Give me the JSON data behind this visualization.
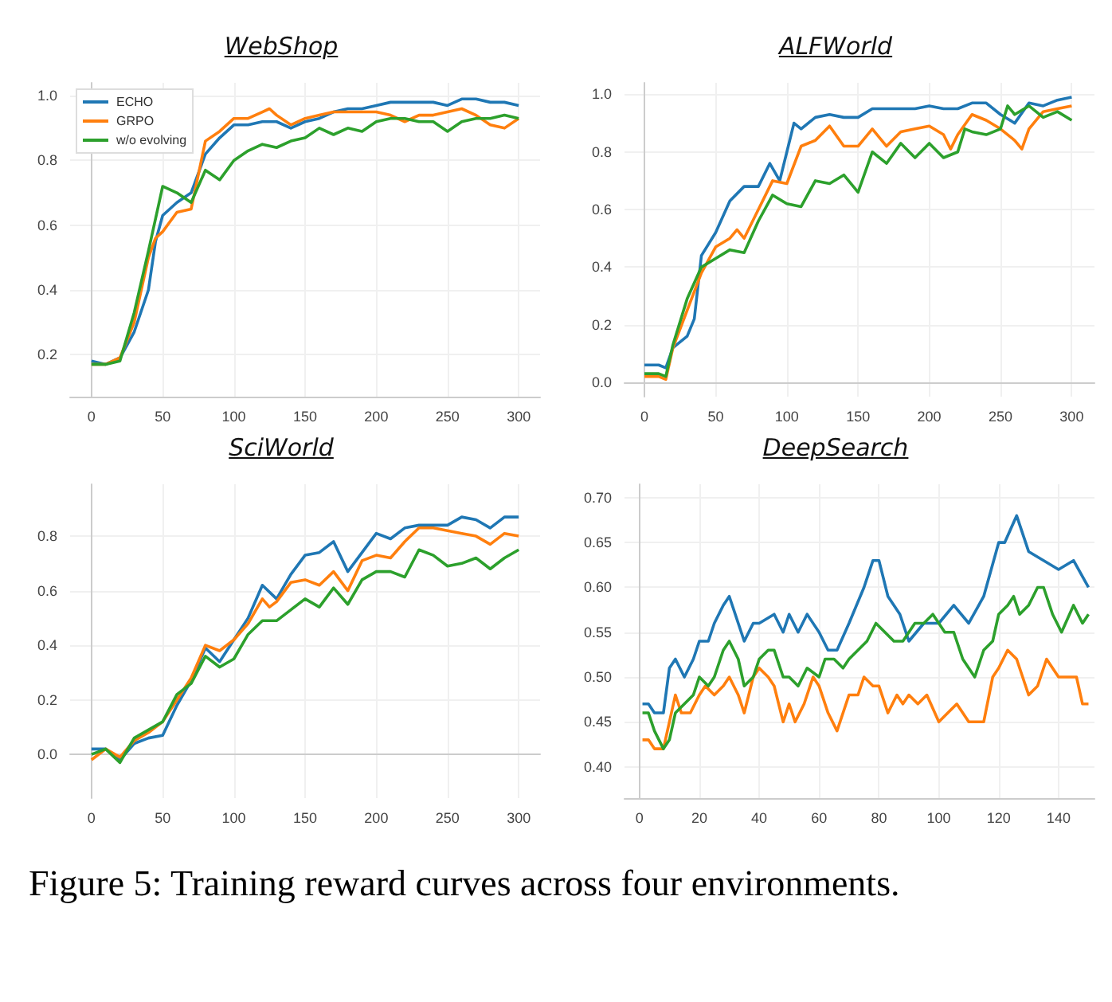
{
  "chart_data": [
    {
      "type": "line",
      "title": "WebShop",
      "legend": "top left",
      "grid": true,
      "xlim": [
        -15,
        315
      ],
      "xticks": [
        0,
        50,
        100,
        150,
        200,
        250,
        300
      ],
      "ylim": [
        0.07,
        1.04
      ],
      "yticks": [
        0.2,
        0.4,
        0.6,
        0.8,
        {
          "value": 1,
          "label": "1.0"
        }
      ],
      "series": [
        {
          "name": "ECHO",
          "color": "#1f77b4",
          "x": [
            0,
            10,
            20,
            30,
            40,
            45,
            50,
            60,
            70,
            80,
            90,
            100,
            110,
            120,
            130,
            140,
            150,
            160,
            170,
            180,
            190,
            200,
            210,
            220,
            230,
            240,
            250,
            260,
            270,
            280,
            290,
            300
          ],
          "values": [
            0.18,
            0.17,
            0.19,
            0.27,
            0.4,
            0.55,
            0.63,
            0.67,
            0.7,
            0.82,
            0.87,
            0.91,
            0.91,
            0.92,
            0.92,
            0.9,
            0.92,
            0.93,
            0.95,
            0.96,
            0.96,
            0.97,
            0.98,
            0.98,
            0.98,
            0.98,
            0.97,
            0.99,
            0.99,
            0.98,
            0.98,
            0.97
          ]
        },
        {
          "name": "GRPO",
          "color": "#ff7f0e",
          "x": [
            0,
            10,
            20,
            30,
            40,
            45,
            50,
            60,
            70,
            80,
            90,
            100,
            110,
            120,
            125,
            130,
            140,
            150,
            160,
            170,
            180,
            190,
            200,
            210,
            220,
            230,
            240,
            250,
            260,
            270,
            280,
            290,
            300
          ],
          "values": [
            0.17,
            0.17,
            0.19,
            0.3,
            0.5,
            0.56,
            0.58,
            0.64,
            0.65,
            0.86,
            0.89,
            0.93,
            0.93,
            0.95,
            0.96,
            0.94,
            0.91,
            0.93,
            0.94,
            0.95,
            0.95,
            0.95,
            0.95,
            0.94,
            0.92,
            0.94,
            0.94,
            0.95,
            0.96,
            0.94,
            0.91,
            0.9,
            0.93
          ]
        },
        {
          "name": "w/o evolving",
          "color": "#2ca02c",
          "x": [
            0,
            10,
            20,
            30,
            40,
            50,
            60,
            70,
            80,
            90,
            100,
            110,
            120,
            130,
            140,
            150,
            160,
            170,
            180,
            190,
            200,
            210,
            220,
            230,
            240,
            250,
            260,
            270,
            280,
            290,
            300
          ],
          "values": [
            0.17,
            0.17,
            0.18,
            0.33,
            0.52,
            0.72,
            0.7,
            0.67,
            0.77,
            0.74,
            0.8,
            0.83,
            0.85,
            0.84,
            0.86,
            0.87,
            0.9,
            0.88,
            0.9,
            0.89,
            0.92,
            0.93,
            0.93,
            0.92,
            0.92,
            0.89,
            0.92,
            0.93,
            0.93,
            0.94,
            0.93
          ]
        }
      ]
    },
    {
      "type": "line",
      "title": "ALFWorld",
      "grid": true,
      "xlim": [
        -14,
        316
      ],
      "xticks": [
        0,
        50,
        100,
        150,
        200,
        250,
        300
      ],
      "ylim": [
        -0.05,
        1.04
      ],
      "yticks": [
        {
          "value": 0,
          "label": "0.0"
        },
        0.2,
        0.4,
        0.6,
        0.8,
        {
          "value": 1,
          "label": "1.0"
        }
      ],
      "series": [
        {
          "color": "#1f77b4",
          "x": [
            0,
            10,
            15,
            20,
            30,
            35,
            40,
            50,
            60,
            70,
            80,
            88,
            95,
            100,
            105,
            110,
            120,
            130,
            140,
            150,
            160,
            170,
            180,
            190,
            200,
            210,
            220,
            230,
            240,
            250,
            260,
            270,
            280,
            290,
            300
          ],
          "values": [
            0.06,
            0.06,
            0.05,
            0.12,
            0.16,
            0.22,
            0.44,
            0.52,
            0.63,
            0.68,
            0.68,
            0.76,
            0.7,
            0.8,
            0.9,
            0.88,
            0.92,
            0.93,
            0.92,
            0.92,
            0.95,
            0.95,
            0.95,
            0.95,
            0.96,
            0.95,
            0.95,
            0.97,
            0.97,
            0.93,
            0.9,
            0.97,
            0.96,
            0.98,
            0.99
          ]
        },
        {
          "color": "#ff7f0e",
          "x": [
            0,
            10,
            15,
            20,
            30,
            40,
            50,
            60,
            65,
            70,
            80,
            90,
            100,
            110,
            120,
            130,
            140,
            150,
            160,
            170,
            180,
            190,
            200,
            210,
            215,
            220,
            230,
            240,
            250,
            260,
            265,
            270,
            280,
            290,
            300
          ],
          "values": [
            0.02,
            0.02,
            0.01,
            0.12,
            0.25,
            0.38,
            0.47,
            0.5,
            0.53,
            0.5,
            0.6,
            0.7,
            0.69,
            0.82,
            0.84,
            0.89,
            0.82,
            0.82,
            0.88,
            0.82,
            0.87,
            0.88,
            0.89,
            0.86,
            0.81,
            0.86,
            0.93,
            0.91,
            0.88,
            0.84,
            0.81,
            0.88,
            0.94,
            0.95,
            0.96
          ]
        },
        {
          "color": "#2ca02c",
          "x": [
            0,
            10,
            15,
            20,
            30,
            40,
            50,
            60,
            70,
            80,
            90,
            100,
            110,
            120,
            130,
            140,
            150,
            160,
            170,
            180,
            190,
            200,
            210,
            220,
            225,
            230,
            240,
            250,
            255,
            260,
            270,
            280,
            290,
            300
          ],
          "values": [
            0.03,
            0.03,
            0.02,
            0.13,
            0.29,
            0.4,
            0.43,
            0.46,
            0.45,
            0.56,
            0.65,
            0.62,
            0.61,
            0.7,
            0.69,
            0.72,
            0.66,
            0.8,
            0.76,
            0.83,
            0.78,
            0.83,
            0.78,
            0.8,
            0.88,
            0.87,
            0.86,
            0.88,
            0.96,
            0.93,
            0.96,
            0.92,
            0.94,
            0.91
          ]
        }
      ]
    },
    {
      "type": "line",
      "title": "SciWorld",
      "grid": true,
      "xlim": [
        -15,
        315
      ],
      "xticks": [
        0,
        50,
        100,
        150,
        200,
        250,
        300
      ],
      "ylim": [
        -0.16,
        0.99
      ],
      "yticks": [
        {
          "value": 0,
          "label": "0.0"
        },
        0.2,
        0.4,
        0.6,
        0.8
      ],
      "series": [
        {
          "color": "#1f77b4",
          "x": [
            0,
            10,
            20,
            30,
            40,
            50,
            60,
            70,
            80,
            90,
            100,
            110,
            120,
            130,
            140,
            150,
            160,
            170,
            180,
            190,
            200,
            210,
            220,
            230,
            240,
            250,
            260,
            270,
            280,
            290,
            300
          ],
          "values": [
            0.02,
            0.02,
            -0.02,
            0.04,
            0.06,
            0.07,
            0.18,
            0.27,
            0.39,
            0.34,
            0.42,
            0.5,
            0.62,
            0.57,
            0.66,
            0.73,
            0.74,
            0.78,
            0.67,
            0.74,
            0.81,
            0.79,
            0.83,
            0.84,
            0.84,
            0.84,
            0.87,
            0.86,
            0.83,
            0.87,
            0.87
          ]
        },
        {
          "color": "#ff7f0e",
          "x": [
            0,
            10,
            20,
            30,
            40,
            50,
            60,
            70,
            80,
            90,
            100,
            110,
            120,
            125,
            130,
            140,
            150,
            160,
            170,
            180,
            190,
            200,
            210,
            220,
            230,
            240,
            250,
            260,
            270,
            280,
            290,
            300
          ],
          "values": [
            -0.02,
            0.02,
            -0.01,
            0.05,
            0.08,
            0.12,
            0.2,
            0.28,
            0.4,
            0.38,
            0.42,
            0.48,
            0.57,
            0.54,
            0.56,
            0.63,
            0.64,
            0.62,
            0.67,
            0.6,
            0.71,
            0.73,
            0.72,
            0.78,
            0.83,
            0.83,
            0.82,
            0.81,
            0.8,
            0.77,
            0.81,
            0.8
          ]
        },
        {
          "color": "#2ca02c",
          "x": [
            0,
            10,
            20,
            30,
            40,
            50,
            60,
            70,
            80,
            90,
            100,
            110,
            120,
            130,
            140,
            150,
            160,
            170,
            180,
            190,
            200,
            210,
            220,
            230,
            240,
            250,
            260,
            270,
            280,
            290,
            300
          ],
          "values": [
            0.0,
            0.02,
            -0.03,
            0.06,
            0.09,
            0.12,
            0.22,
            0.26,
            0.36,
            0.32,
            0.35,
            0.44,
            0.49,
            0.49,
            0.53,
            0.57,
            0.54,
            0.61,
            0.55,
            0.64,
            0.67,
            0.67,
            0.65,
            0.75,
            0.73,
            0.69,
            0.7,
            0.72,
            0.68,
            0.72,
            0.75
          ]
        }
      ]
    },
    {
      "type": "line",
      "title": "DeepSearch",
      "grid": true,
      "xlim": [
        -5,
        152
      ],
      "xticks": [
        0,
        20,
        40,
        60,
        80,
        100,
        120,
        140
      ],
      "ylim": [
        0.365,
        0.715
      ],
      "yticks": [
        {
          "value": 0.4,
          "label": "0.40"
        },
        {
          "value": 0.45,
          "label": "0.45"
        },
        {
          "value": 0.5,
          "label": "0.50"
        },
        {
          "value": 0.55,
          "label": "0.55"
        },
        {
          "value": 0.6,
          "label": "0.60"
        },
        {
          "value": 0.65,
          "label": "0.65"
        },
        {
          "value": 0.7,
          "label": "0.70"
        }
      ],
      "annotations": [
        "Figure 5: Training reward curves across four environments."
      ],
      "series": [
        {
          "color": "#1f77b4",
          "x": [
            1,
            3,
            5,
            8,
            10,
            12,
            15,
            18,
            20,
            23,
            25,
            28,
            30,
            33,
            35,
            38,
            40,
            45,
            48,
            50,
            53,
            56,
            60,
            63,
            66,
            70,
            75,
            78,
            80,
            83,
            87,
            90,
            95,
            100,
            105,
            110,
            115,
            120,
            122,
            126,
            130,
            135,
            140,
            145,
            150
          ],
          "values": [
            0.47,
            0.47,
            0.46,
            0.46,
            0.51,
            0.52,
            0.5,
            0.52,
            0.54,
            0.54,
            0.56,
            0.58,
            0.59,
            0.56,
            0.54,
            0.56,
            0.56,
            0.57,
            0.55,
            0.57,
            0.55,
            0.57,
            0.55,
            0.53,
            0.53,
            0.56,
            0.6,
            0.63,
            0.63,
            0.59,
            0.57,
            0.54,
            0.56,
            0.56,
            0.58,
            0.56,
            0.59,
            0.65,
            0.65,
            0.68,
            0.64,
            0.63,
            0.62,
            0.63,
            0.6
          ]
        },
        {
          "color": "#ff7f0e",
          "x": [
            1,
            3,
            5,
            8,
            10,
            12,
            14,
            17,
            20,
            22,
            25,
            28,
            30,
            33,
            35,
            38,
            40,
            43,
            45,
            48,
            50,
            52,
            55,
            58,
            60,
            63,
            66,
            70,
            73,
            75,
            78,
            80,
            83,
            86,
            88,
            90,
            93,
            96,
            100,
            103,
            106,
            110,
            115,
            118,
            120,
            123,
            126,
            130,
            133,
            136,
            140,
            143,
            146,
            148,
            150
          ],
          "values": [
            0.43,
            0.43,
            0.42,
            0.42,
            0.45,
            0.48,
            0.46,
            0.46,
            0.48,
            0.49,
            0.48,
            0.49,
            0.5,
            0.48,
            0.46,
            0.5,
            0.51,
            0.5,
            0.49,
            0.45,
            0.47,
            0.45,
            0.47,
            0.5,
            0.49,
            0.46,
            0.44,
            0.48,
            0.48,
            0.5,
            0.49,
            0.49,
            0.46,
            0.48,
            0.47,
            0.48,
            0.47,
            0.48,
            0.45,
            0.46,
            0.47,
            0.45,
            0.45,
            0.5,
            0.51,
            0.53,
            0.52,
            0.48,
            0.49,
            0.52,
            0.5,
            0.5,
            0.5,
            0.47,
            0.47
          ]
        },
        {
          "color": "#2ca02c",
          "x": [
            1,
            3,
            5,
            8,
            10,
            12,
            15,
            18,
            20,
            23,
            25,
            28,
            30,
            33,
            35,
            38,
            40,
            43,
            45,
            48,
            50,
            53,
            56,
            60,
            62,
            65,
            68,
            70,
            73,
            76,
            79,
            82,
            85,
            88,
            92,
            95,
            98,
            102,
            105,
            108,
            112,
            115,
            118,
            120,
            123,
            125,
            127,
            130,
            133,
            135,
            138,
            141,
            145,
            148,
            150
          ],
          "values": [
            0.46,
            0.46,
            0.44,
            0.42,
            0.43,
            0.46,
            0.47,
            0.48,
            0.5,
            0.49,
            0.5,
            0.53,
            0.54,
            0.52,
            0.49,
            0.5,
            0.52,
            0.53,
            0.53,
            0.5,
            0.5,
            0.49,
            0.51,
            0.5,
            0.52,
            0.52,
            0.51,
            0.52,
            0.53,
            0.54,
            0.56,
            0.55,
            0.54,
            0.54,
            0.56,
            0.56,
            0.57,
            0.55,
            0.55,
            0.52,
            0.5,
            0.53,
            0.54,
            0.57,
            0.58,
            0.59,
            0.57,
            0.58,
            0.6,
            0.6,
            0.57,
            0.55,
            0.58,
            0.56,
            0.57
          ]
        }
      ]
    }
  ]
}
